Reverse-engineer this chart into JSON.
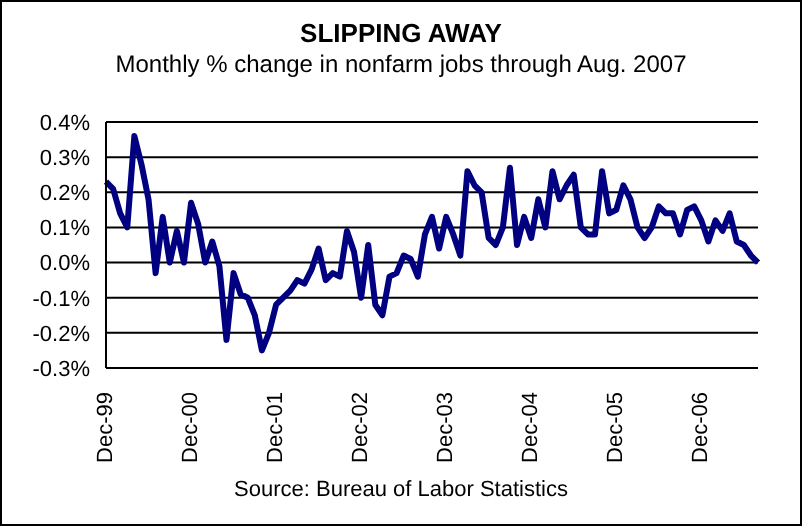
{
  "chart_data": {
    "type": "line",
    "title": "SLIPPING AWAY",
    "subtitle": "Monthly % change in nonfarm jobs through Aug. 2007",
    "annotations": [
      "Source: Bureau of Labor Statistics"
    ],
    "categories": [
      "Dec-99",
      null,
      null,
      null,
      null,
      null,
      null,
      null,
      null,
      null,
      null,
      null,
      "Dec-00",
      null,
      null,
      null,
      null,
      null,
      null,
      null,
      null,
      null,
      null,
      null,
      "Dec-01",
      null,
      null,
      null,
      null,
      null,
      null,
      null,
      null,
      null,
      null,
      null,
      "Dec-02",
      null,
      null,
      null,
      null,
      null,
      null,
      null,
      null,
      null,
      null,
      null,
      "Dec-03",
      null,
      null,
      null,
      null,
      null,
      null,
      null,
      null,
      null,
      null,
      null,
      "Dec-04",
      null,
      null,
      null,
      null,
      null,
      null,
      null,
      null,
      null,
      null,
      null,
      "Dec-05",
      null,
      null,
      null,
      null,
      null,
      null,
      null,
      null,
      null,
      null,
      null,
      "Dec-06",
      null,
      null,
      null,
      null,
      null,
      null,
      null,
      null
    ],
    "series": [
      {
        "color": "#000080",
        "values": [
          0.23,
          0.21,
          0.14,
          0.1,
          0.36,
          0.28,
          0.18,
          -0.03,
          0.13,
          0.0,
          0.09,
          0.0,
          0.17,
          0.11,
          0.0,
          0.06,
          -0.01,
          -0.22,
          -0.03,
          -0.09,
          -0.1,
          -0.15,
          -0.25,
          -0.2,
          -0.12,
          -0.1,
          -0.08,
          -0.05,
          -0.06,
          -0.02,
          0.04,
          -0.05,
          -0.03,
          -0.04,
          0.09,
          0.03,
          -0.1,
          0.05,
          -0.12,
          -0.15,
          -0.04,
          -0.03,
          0.02,
          0.01,
          -0.04,
          0.08,
          0.13,
          0.04,
          0.13,
          0.08,
          0.02,
          0.26,
          0.22,
          0.2,
          0.07,
          0.05,
          0.1,
          0.27,
          0.05,
          0.13,
          0.07,
          0.18,
          0.1,
          0.26,
          0.18,
          0.22,
          0.25,
          0.1,
          0.08,
          0.08,
          0.26,
          0.14,
          0.15,
          0.22,
          0.18,
          0.1,
          0.07,
          0.1,
          0.16,
          0.14,
          0.14,
          0.08,
          0.15,
          0.16,
          0.12,
          0.06,
          0.12,
          0.09,
          0.14,
          0.06,
          0.05,
          0.02,
          0.0
        ]
      }
    ],
    "ylim": [
      -0.3,
      0.4
    ],
    "yticks": [
      {
        "value": -0.3,
        "label": "-0.3%"
      },
      {
        "value": -0.2,
        "label": "-0.2%"
      },
      {
        "value": -0.1,
        "label": "-0.1%"
      },
      {
        "value": 0,
        "label": "0.0%"
      },
      {
        "value": 0.1,
        "label": "0.1%"
      },
      {
        "value": 0.2,
        "label": "0.2%"
      },
      {
        "value": 0.3,
        "label": "0.3%"
      },
      {
        "value": 0.4,
        "label": "0.4%"
      }
    ],
    "grid": "y",
    "legend": false,
    "marker": "none",
    "line_style": "solid"
  }
}
